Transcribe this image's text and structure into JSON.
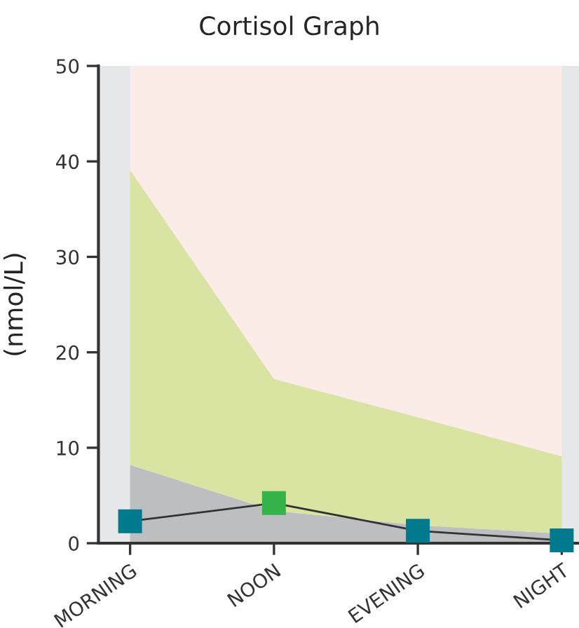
{
  "chart_data": {
    "type": "area",
    "title": "Cortisol Graph",
    "ylabel": "(nmol/L)",
    "categories": [
      "MORNING",
      "NOON",
      "EVENING",
      "NIGHT"
    ],
    "stacked": true,
    "series": [
      {
        "color": "#bdbec2",
        "values": [
          8.2,
          3.4,
          1.9,
          1.0
        ]
      },
      {
        "color": "#d9e4a2",
        "values": [
          30.9,
          13.8,
          11.3,
          8.1
        ]
      },
      {
        "color": "#fcece8",
        "values": [
          10.9,
          32.8,
          36.8,
          40.9
        ]
      },
      {
        "type": "line",
        "color": "#333333",
        "colors": [
          "#007a8c",
          "#35b24a",
          "#007a8c",
          "#007a8c"
        ],
        "marker": "square",
        "values": [
          2.3,
          4.2,
          1.3,
          0.3
        ]
      }
    ],
    "ylim": [
      0,
      50
    ],
    "yticks": [
      0,
      10,
      20,
      30,
      40,
      50
    ],
    "grid": false,
    "legend": false
  }
}
